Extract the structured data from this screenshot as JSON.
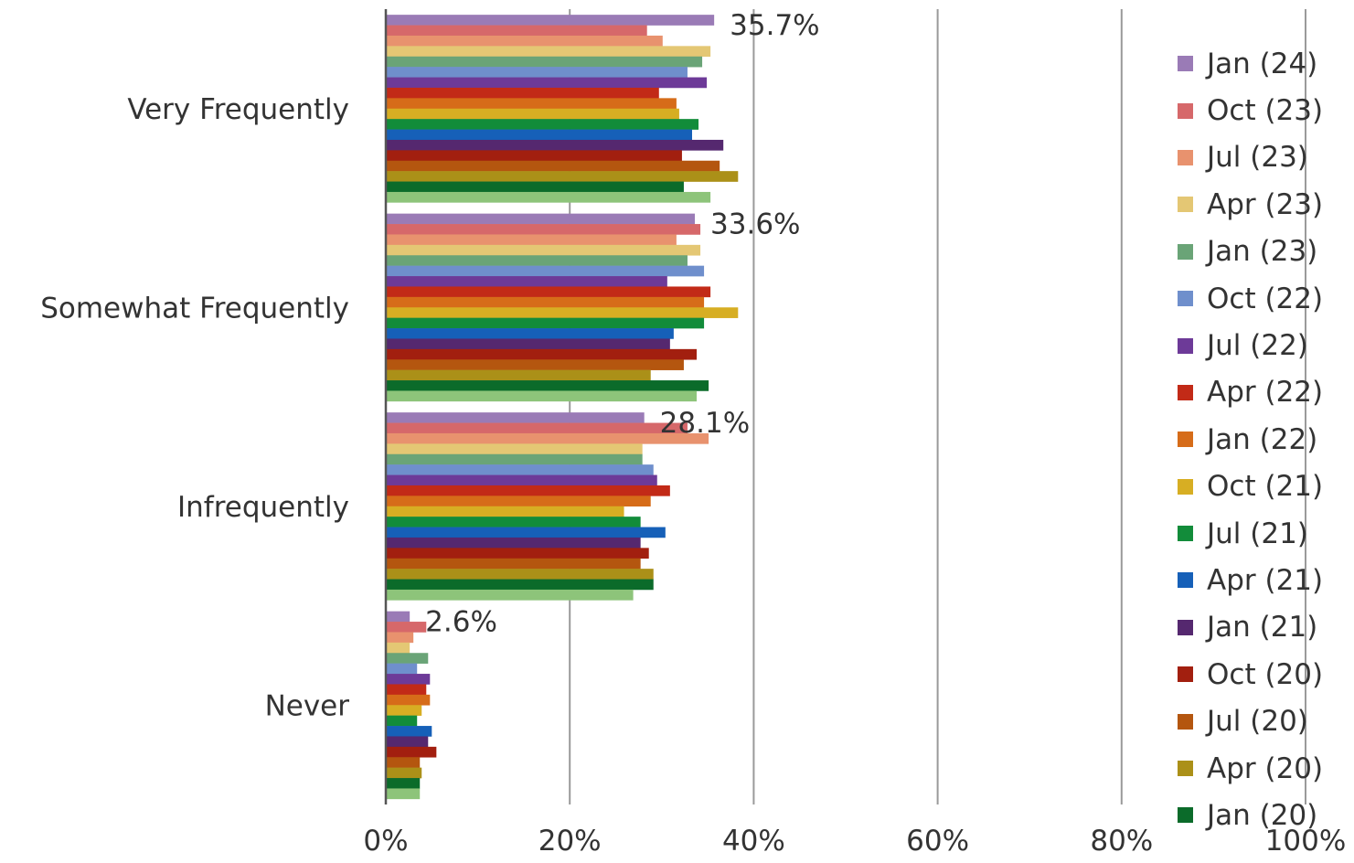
{
  "chart_data": {
    "type": "bar",
    "orientation": "horizontal",
    "categories": [
      "Very Frequently",
      "Somewhat Frequently",
      "Infrequently",
      "Never"
    ],
    "x_ticks": [
      "0%",
      "20%",
      "40%",
      "60%",
      "80%",
      "100%"
    ],
    "xlim": [
      0,
      100
    ],
    "grid": true,
    "legend_position": "right",
    "data_labels": [
      "35.7%",
      "33.6%",
      "28.1%",
      "2.6%"
    ],
    "series": [
      {
        "name": "Jan (24)",
        "color": "#9a7bb6",
        "values": [
          35.7,
          33.6,
          28.1,
          2.6
        ]
      },
      {
        "name": "Oct (23)",
        "color": "#d6686a",
        "values": [
          28.4,
          34.2,
          32.8,
          4.4
        ]
      },
      {
        "name": "Jul (23)",
        "color": "#e8926e",
        "values": [
          30.1,
          31.6,
          35.1,
          3.0
        ]
      },
      {
        "name": "Apr (23)",
        "color": "#e4c774",
        "values": [
          35.3,
          34.2,
          27.9,
          2.6
        ]
      },
      {
        "name": "Jan (23)",
        "color": "#6aa477",
        "values": [
          34.4,
          32.8,
          27.9,
          4.6
        ]
      },
      {
        "name": "Oct (22)",
        "color": "#6f8fcc",
        "values": [
          32.8,
          34.6,
          29.1,
          3.4
        ]
      },
      {
        "name": "Jul (22)",
        "color": "#6d3a98",
        "values": [
          34.9,
          30.6,
          29.5,
          4.8
        ]
      },
      {
        "name": "Apr (22)",
        "color": "#c22a17",
        "values": [
          29.7,
          35.3,
          30.9,
          4.4
        ]
      },
      {
        "name": "Jan (22)",
        "color": "#d66c19",
        "values": [
          31.6,
          34.6,
          28.8,
          4.8
        ]
      },
      {
        "name": "Oct (21)",
        "color": "#d7ae23",
        "values": [
          31.9,
          38.3,
          25.9,
          3.9
        ]
      },
      {
        "name": "Jul (21)",
        "color": "#128c3a",
        "values": [
          34.0,
          34.6,
          27.7,
          3.4
        ]
      },
      {
        "name": "Apr (21)",
        "color": "#1660b8",
        "values": [
          33.3,
          31.3,
          30.4,
          5.0
        ]
      },
      {
        "name": "Jan (21)",
        "color": "#55286f",
        "values": [
          36.7,
          30.9,
          27.7,
          4.6
        ]
      },
      {
        "name": "Oct (20)",
        "color": "#a21f0f",
        "values": [
          32.2,
          33.8,
          28.6,
          5.5
        ]
      },
      {
        "name": "Jul (20)",
        "color": "#b4560f",
        "values": [
          36.3,
          32.4,
          27.7,
          3.7
        ]
      },
      {
        "name": "Apr (20)",
        "color": "#ab9018",
        "values": [
          38.3,
          28.8,
          29.1,
          3.9
        ]
      },
      {
        "name": "Jan (20)",
        "color": "#0b6b2a",
        "values": [
          32.4,
          35.1,
          29.1,
          3.7
        ]
      },
      {
        "name": "",
        "color": "#8dc47a",
        "values": [
          35.3,
          33.8,
          26.9,
          3.7
        ]
      }
    ]
  }
}
